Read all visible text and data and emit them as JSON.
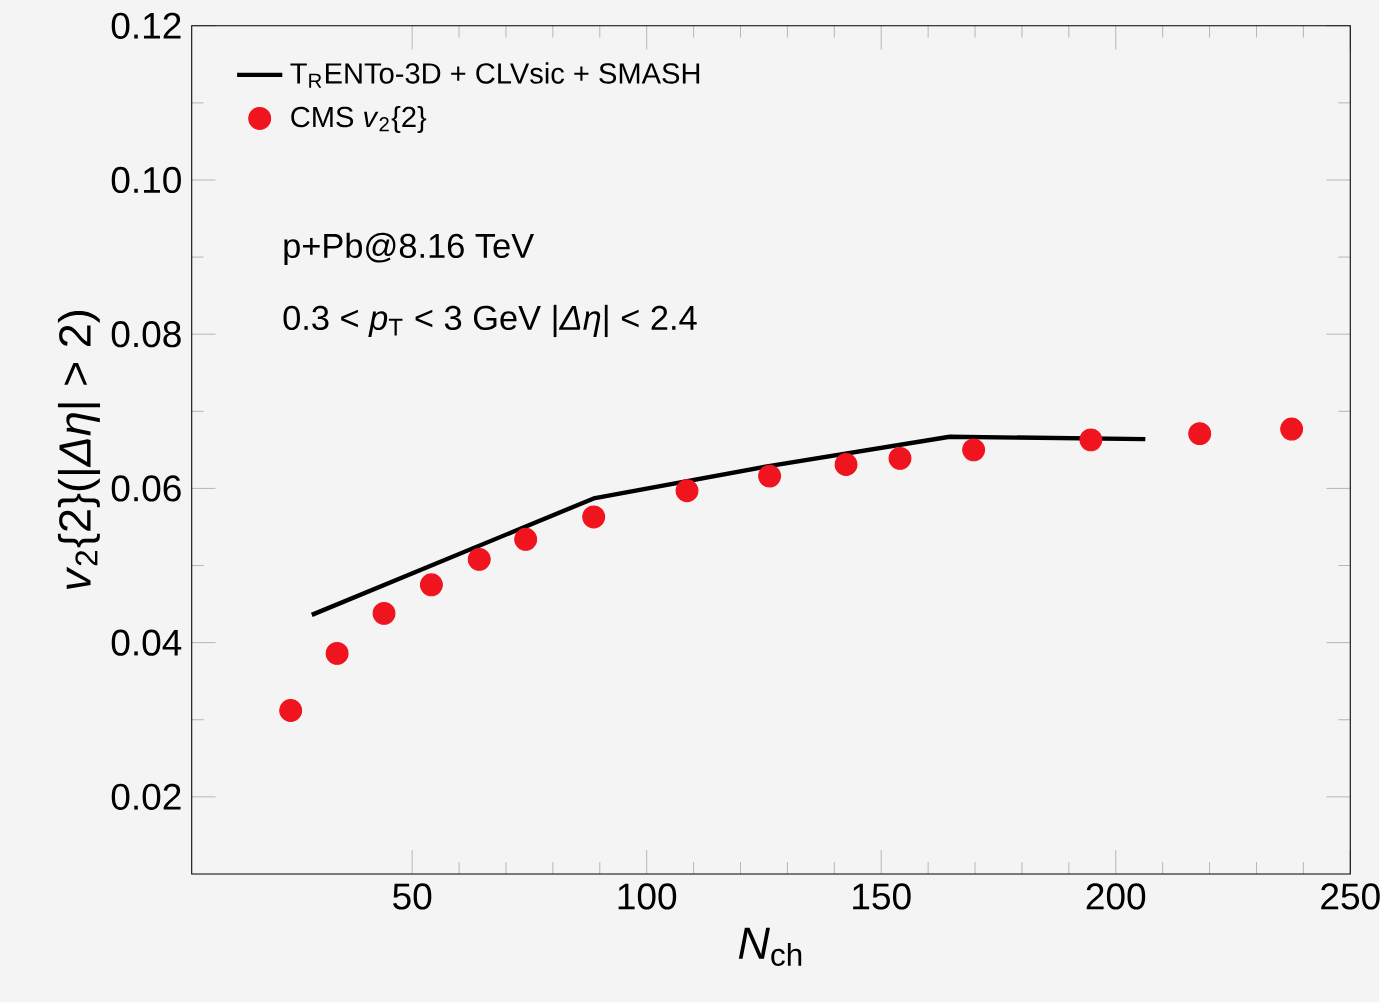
{
  "chart_data": {
    "type": "scatter",
    "xlabel": "*N*$_{ch}$",
    "ylabel": "*v*$_{2}${2}(|*Δη*| > 2)",
    "xlim": [
      3,
      250
    ],
    "ylim": [
      0.01,
      0.12
    ],
    "xticks": [
      50,
      100,
      150,
      200,
      250
    ],
    "yticks": [
      {
        "value": 0.02,
        "label": "0.02"
      },
      {
        "value": 0.04,
        "label": "0.04"
      },
      {
        "value": 0.06,
        "label": "0.06"
      },
      {
        "value": 0.08,
        "label": "0.08"
      },
      {
        "value": 0.1,
        "label": "0.10"
      },
      {
        "value": 0.12,
        "label": "0.12"
      }
    ],
    "legend": "top left",
    "grid": false,
    "annotations": [
      "p+Pb@8.16 TeV",
      "0.3 < *p*$_{T}$ < 3 GeV  |*Δη*| < 2.4"
    ],
    "series": [
      {
        "name": "T$_{R}$ENTo-3D + CLVsic + SMASH",
        "type": "line",
        "color": "#000000",
        "marker": "none",
        "line_style": "solid",
        "x": [
          28.6,
          88.7,
          126,
          164.6,
          206.3
        ],
        "values": [
          0.0436,
          0.0587,
          0.0629,
          0.0667,
          0.0664
        ]
      },
      {
        "name": "CMS *v*$_{2}${2}",
        "color": "#f0141e",
        "marker": "circle",
        "x": [
          24.1,
          34.0,
          44.0,
          54.1,
          64.3,
          74.2,
          88.7,
          108.6,
          126.2,
          142.5,
          154.0,
          169.7,
          194.7,
          217.9,
          237.5
        ],
        "values": [
          0.0312,
          0.0386,
          0.0438,
          0.0475,
          0.0508,
          0.0534,
          0.0563,
          0.0597,
          0.0616,
          0.0631,
          0.0639,
          0.065,
          0.0663,
          0.0671,
          0.0677
        ]
      }
    ]
  }
}
